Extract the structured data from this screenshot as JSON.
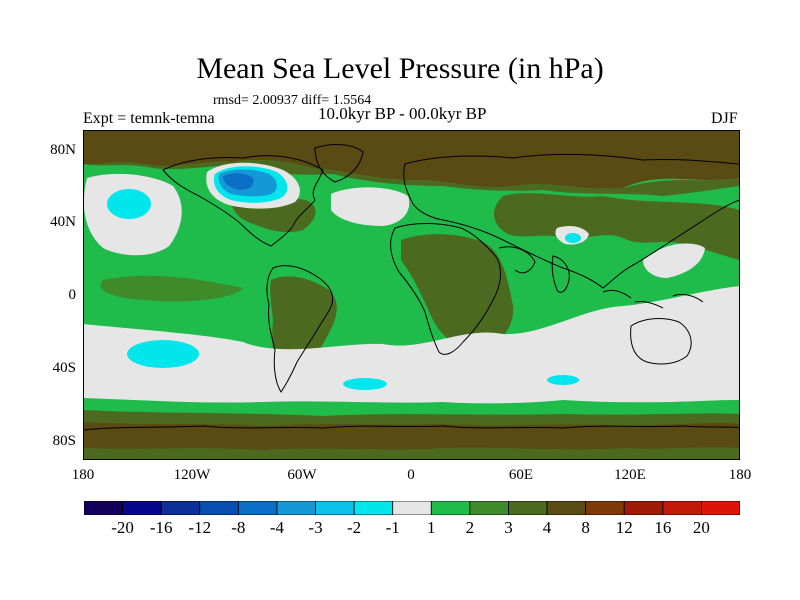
{
  "title": "Mean Sea Level Pressure (in hPa)",
  "stats": "rmsd= 2.00937 diff= 1.5564",
  "period": "10.0kyr BP - 00.0kyr BP",
  "experiment": "Expt = temnk-temna",
  "season": "DJF",
  "lat_labels": [
    "80N",
    "40N",
    "0",
    "40S",
    "80S"
  ],
  "lon_labels": [
    "180",
    "120W",
    "60W",
    "0",
    "60E",
    "120E",
    "180"
  ],
  "colorbar": {
    "labels": [
      "-20",
      "-16",
      "-12",
      "-8",
      "-4",
      "-3",
      "-2",
      "-1",
      "1",
      "2",
      "3",
      "4",
      "8",
      "12",
      "16",
      "20"
    ],
    "colors": [
      "#12005a",
      "#04068c",
      "#0c2f98",
      "#084eb0",
      "#0b6fc8",
      "#1598d6",
      "#0dc2e8",
      "#00e6ec",
      "#e6e6e6",
      "#1fbc4c",
      "#3f8a2a",
      "#4c6a1f",
      "#5a4a14",
      "#7d3a08",
      "#a01a08",
      "#c11808",
      "#dc1408"
    ]
  },
  "palette": {
    "white": "#e6e6e6",
    "cyan": "#00e6ec",
    "lightblue": "#1598d6",
    "blue": "#0b6fc8",
    "green": "#1fbc4c",
    "darkgreen": "#3f8a2a",
    "olive": "#4c6a1f",
    "brown": "#5a4a14"
  }
}
